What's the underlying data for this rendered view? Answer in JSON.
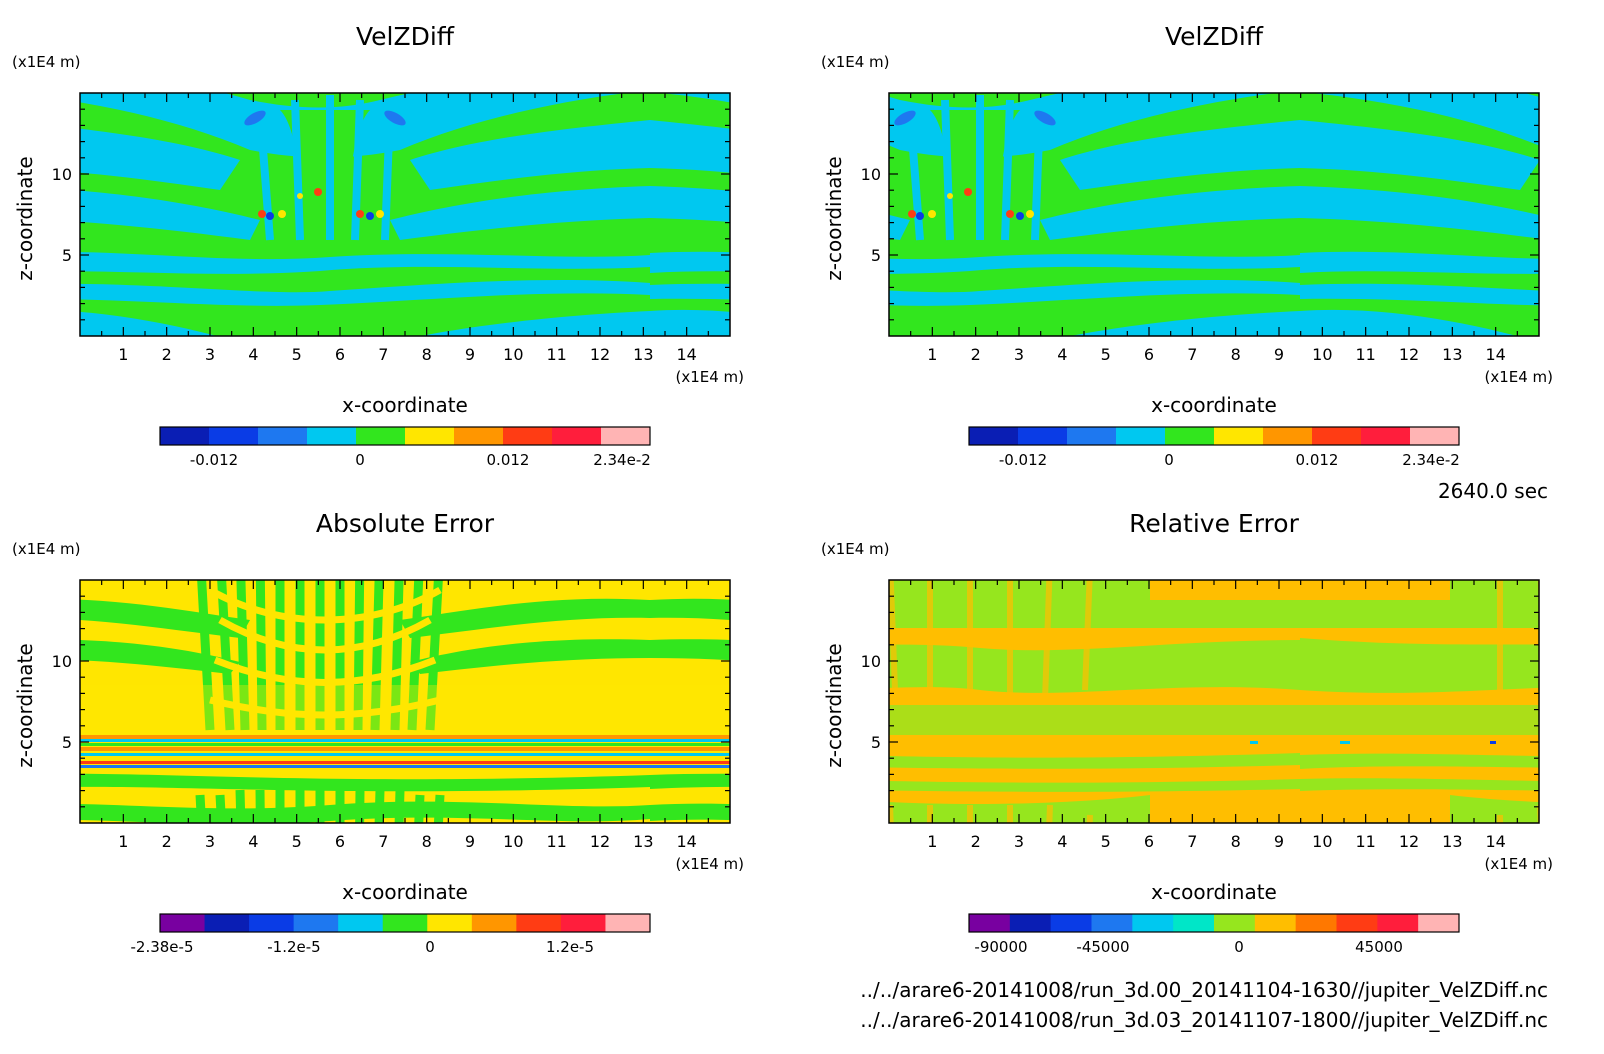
{
  "time_label": "2640.0 sec",
  "file_lines": [
    "../../arare6-20141008/run_3d.00_20141104-1630//jupiter_VelZDiff.nc",
    "../../arare6-20141008/run_3d.03_20141107-1800//jupiter_VelZDiff.nc"
  ],
  "chart_data": [
    {
      "type": "heatmap",
      "title": "VelZDiff",
      "xlabel": "x-coordinate",
      "ylabel": "z-coordinate",
      "x_unit": "(x1E4 m)",
      "y_unit": "(x1E4 m)",
      "xlim": [
        0,
        15
      ],
      "ylim": [
        0,
        15
      ],
      "x_ticks": [
        "1",
        "2",
        "3",
        "4",
        "5",
        "6",
        "7",
        "8",
        "9",
        "10",
        "11",
        "12",
        "13",
        "14"
      ],
      "y_ticks": [
        "5",
        "10"
      ],
      "colorbar": {
        "colors": [
          "#0a1eb4",
          "#0a3ce6",
          "#1e78f0",
          "#00c8f0",
          "#32e61e",
          "#ffe600",
          "#ff9600",
          "#ff3c14",
          "#ff1e3c",
          "#ffb4b4"
        ],
        "tick_labels": [
          "-0.012",
          "0",
          "0.012",
          "2.34e-2"
        ]
      }
    },
    {
      "type": "heatmap",
      "title": "VelZDiff",
      "xlabel": "x-coordinate",
      "ylabel": "z-coordinate",
      "x_unit": "(x1E4 m)",
      "y_unit": "(x1E4 m)",
      "xlim": [
        0,
        15
      ],
      "ylim": [
        0,
        15
      ],
      "x_ticks": [
        "1",
        "2",
        "3",
        "4",
        "5",
        "6",
        "7",
        "8",
        "9",
        "10",
        "11",
        "12",
        "13",
        "14"
      ],
      "y_ticks": [
        "5",
        "10"
      ],
      "colorbar": {
        "colors": [
          "#0a1eb4",
          "#0a3ce6",
          "#1e78f0",
          "#00c8f0",
          "#32e61e",
          "#ffe600",
          "#ff9600",
          "#ff3c14",
          "#ff1e3c",
          "#ffb4b4"
        ],
        "tick_labels": [
          "-0.012",
          "0",
          "0.012",
          "2.34e-2"
        ]
      }
    },
    {
      "type": "heatmap",
      "title": "Absolute Error",
      "xlabel": "x-coordinate",
      "ylabel": "z-coordinate",
      "x_unit": "(x1E4 m)",
      "y_unit": "(x1E4 m)",
      "xlim": [
        0,
        15
      ],
      "ylim": [
        0,
        15
      ],
      "x_ticks": [
        "1",
        "2",
        "3",
        "4",
        "5",
        "6",
        "7",
        "8",
        "9",
        "10",
        "11",
        "12",
        "13",
        "14"
      ],
      "y_ticks": [
        "5",
        "10"
      ],
      "colorbar": {
        "colors": [
          "#7800a0",
          "#0a1eb4",
          "#0a3ce6",
          "#1e78f0",
          "#00c8f0",
          "#32e61e",
          "#ffe600",
          "#ff9600",
          "#ff3c14",
          "#ff1e3c",
          "#ffb4b4"
        ],
        "tick_labels": [
          "-2.38e-5",
          "-1.2e-5",
          "0",
          "1.2e-5"
        ]
      }
    },
    {
      "type": "heatmap",
      "title": "Relative Error",
      "xlabel": "x-coordinate",
      "ylabel": "z-coordinate",
      "x_unit": "(x1E4 m)",
      "y_unit": "(x1E4 m)",
      "xlim": [
        0,
        15
      ],
      "ylim": [
        0,
        15
      ],
      "x_ticks": [
        "1",
        "2",
        "3",
        "4",
        "5",
        "6",
        "7",
        "8",
        "9",
        "10",
        "11",
        "12",
        "13",
        "14"
      ],
      "y_ticks": [
        "5",
        "10"
      ],
      "colorbar": {
        "colors": [
          "#7800a0",
          "#0a1eb4",
          "#0a3ce6",
          "#1e78f0",
          "#00c8f0",
          "#00e6c8",
          "#96e61e",
          "#ffbe00",
          "#ff7800",
          "#ff3c14",
          "#ff1e3c",
          "#ffb4b4"
        ],
        "tick_labels": [
          "-90000",
          "-45000",
          "0",
          "45000"
        ]
      }
    }
  ]
}
